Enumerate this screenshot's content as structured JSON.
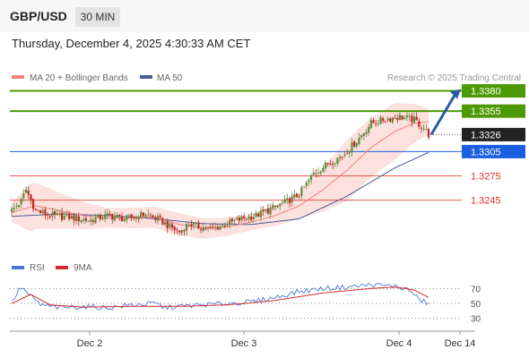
{
  "header": {
    "symbol": "GBP/USD",
    "timeframe": "30 MIN",
    "datetime": "Thursday, December 4, 2025 4:30:33 AM CET"
  },
  "legend": {
    "ma20": "MA 20 + Bollinger Bands",
    "ma50": "MA 50",
    "copyright": "Research © 2025 Trading Central",
    "rsi": "RSI",
    "rsi_ma": "9MA"
  },
  "colors": {
    "resistance": "#4d9a06",
    "support": "#e0302b",
    "pivot": "#1a5fe0",
    "current": "#222222",
    "up_candle": "#5e8a3a",
    "down_candle": "#c0281f",
    "bollinger_fill": "#fbd9d6",
    "ma20": "#f0827c",
    "ma50": "#4a5b99",
    "arrow": "#2a5ba8",
    "rsi": "#4a7bd4",
    "rsi_ma": "#d42a2a"
  },
  "chart_data": [
    {
      "type": "candlestick",
      "x_ticks": [
        "Dec 2",
        "Dec 3",
        "Dec 4",
        "Dec 14"
      ],
      "ylim": [
        1.3175,
        1.3385
      ],
      "levels": [
        {
          "label": "1.3380",
          "value": 1.338,
          "kind": "resistance"
        },
        {
          "label": "1.3355",
          "value": 1.3355,
          "kind": "resistance"
        },
        {
          "label": "1.3326",
          "value": 1.3326,
          "kind": "current"
        },
        {
          "label": "1.3305",
          "value": 1.3305,
          "kind": "pivot"
        },
        {
          "label": "1.3275",
          "value": 1.3275,
          "kind": "support"
        },
        {
          "label": "1.3245",
          "value": 1.3245,
          "kind": "support"
        }
      ],
      "close_anchors": [
        [
          0,
          1.3232
        ],
        [
          4,
          1.3244
        ],
        [
          6,
          1.3258
        ],
        [
          10,
          1.3232
        ],
        [
          16,
          1.3226
        ],
        [
          24,
          1.3224
        ],
        [
          32,
          1.322
        ],
        [
          40,
          1.3226
        ],
        [
          48,
          1.3222
        ],
        [
          56,
          1.3228
        ],
        [
          62,
          1.322
        ],
        [
          66,
          1.3212
        ],
        [
          70,
          1.3206
        ],
        [
          74,
          1.3216
        ],
        [
          78,
          1.3212
        ],
        [
          84,
          1.321
        ],
        [
          90,
          1.3216
        ],
        [
          96,
          1.3222
        ],
        [
          102,
          1.3226
        ],
        [
          108,
          1.3234
        ],
        [
          114,
          1.3242
        ],
        [
          120,
          1.3252
        ],
        [
          126,
          1.3278
        ],
        [
          132,
          1.329
        ],
        [
          138,
          1.33
        ],
        [
          144,
          1.3318
        ],
        [
          150,
          1.334
        ],
        [
          156,
          1.3345
        ],
        [
          162,
          1.3348
        ],
        [
          168,
          1.3344
        ],
        [
          172,
          1.3334
        ],
        [
          174,
          1.3326
        ]
      ],
      "ma20_anchors": [
        [
          0,
          1.323
        ],
        [
          10,
          1.3238
        ],
        [
          20,
          1.3232
        ],
        [
          30,
          1.3226
        ],
        [
          40,
          1.3223
        ],
        [
          50,
          1.3223
        ],
        [
          60,
          1.3224
        ],
        [
          70,
          1.3215
        ],
        [
          80,
          1.321
        ],
        [
          90,
          1.3212
        ],
        [
          100,
          1.3218
        ],
        [
          110,
          1.3226
        ],
        [
          120,
          1.3238
        ],
        [
          130,
          1.3258
        ],
        [
          140,
          1.3282
        ],
        [
          150,
          1.331
        ],
        [
          160,
          1.333
        ],
        [
          168,
          1.334
        ],
        [
          174,
          1.3342
        ]
      ],
      "ma50_anchors": [
        [
          0,
          1.3225
        ],
        [
          20,
          1.3228
        ],
        [
          40,
          1.3226
        ],
        [
          60,
          1.3222
        ],
        [
          80,
          1.3216
        ],
        [
          100,
          1.3215
        ],
        [
          120,
          1.3222
        ],
        [
          140,
          1.325
        ],
        [
          160,
          1.3285
        ],
        [
          174,
          1.3304
        ]
      ],
      "bollinger_width_anchors": [
        [
          0,
          0.0012
        ],
        [
          8,
          0.003
        ],
        [
          20,
          0.0022
        ],
        [
          40,
          0.0012
        ],
        [
          70,
          0.0014
        ],
        [
          100,
          0.001
        ],
        [
          120,
          0.0016
        ],
        [
          140,
          0.0038
        ],
        [
          160,
          0.0035
        ],
        [
          174,
          0.0016
        ]
      ],
      "projection": {
        "from": 1.3326,
        "to": 1.338
      }
    },
    {
      "type": "line",
      "name": "RSI",
      "ylim": [
        20,
        80
      ],
      "y_ticks": [
        "70",
        "50",
        "30"
      ],
      "rsi_anchors": [
        [
          0,
          52
        ],
        [
          4,
          72
        ],
        [
          7,
          62
        ],
        [
          12,
          48
        ],
        [
          20,
          44
        ],
        [
          30,
          46
        ],
        [
          40,
          44
        ],
        [
          50,
          48
        ],
        [
          60,
          50
        ],
        [
          64,
          44
        ],
        [
          70,
          46
        ],
        [
          80,
          48
        ],
        [
          90,
          50
        ],
        [
          100,
          52
        ],
        [
          110,
          58
        ],
        [
          120,
          66
        ],
        [
          130,
          70
        ],
        [
          140,
          72
        ],
        [
          150,
          75
        ],
        [
          160,
          73
        ],
        [
          166,
          68
        ],
        [
          170,
          55
        ],
        [
          174,
          50
        ]
      ],
      "rsi_ma_anchors": [
        [
          0,
          50
        ],
        [
          8,
          62
        ],
        [
          16,
          48
        ],
        [
          30,
          45
        ],
        [
          50,
          46
        ],
        [
          70,
          46
        ],
        [
          90,
          48
        ],
        [
          110,
          54
        ],
        [
          130,
          64
        ],
        [
          150,
          70
        ],
        [
          160,
          72
        ],
        [
          168,
          68
        ],
        [
          174,
          58
        ]
      ]
    }
  ]
}
